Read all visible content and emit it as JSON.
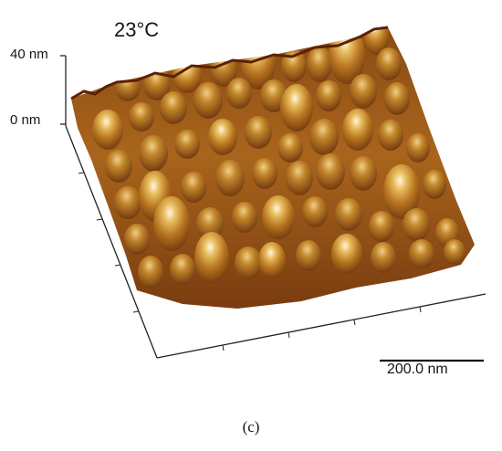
{
  "title": "23°C",
  "z_axis": {
    "top_label": "40 nm",
    "bottom_label": "0 nm"
  },
  "scale_bar": {
    "label": "200.0 nm"
  },
  "caption": "(c)",
  "colors": {
    "surface_dark": "#6b2f0c",
    "surface_mid": "#b5741e",
    "surface_light": "#e2b455",
    "peak_highlight": "#fff8e8",
    "background": "#ffffff"
  }
}
